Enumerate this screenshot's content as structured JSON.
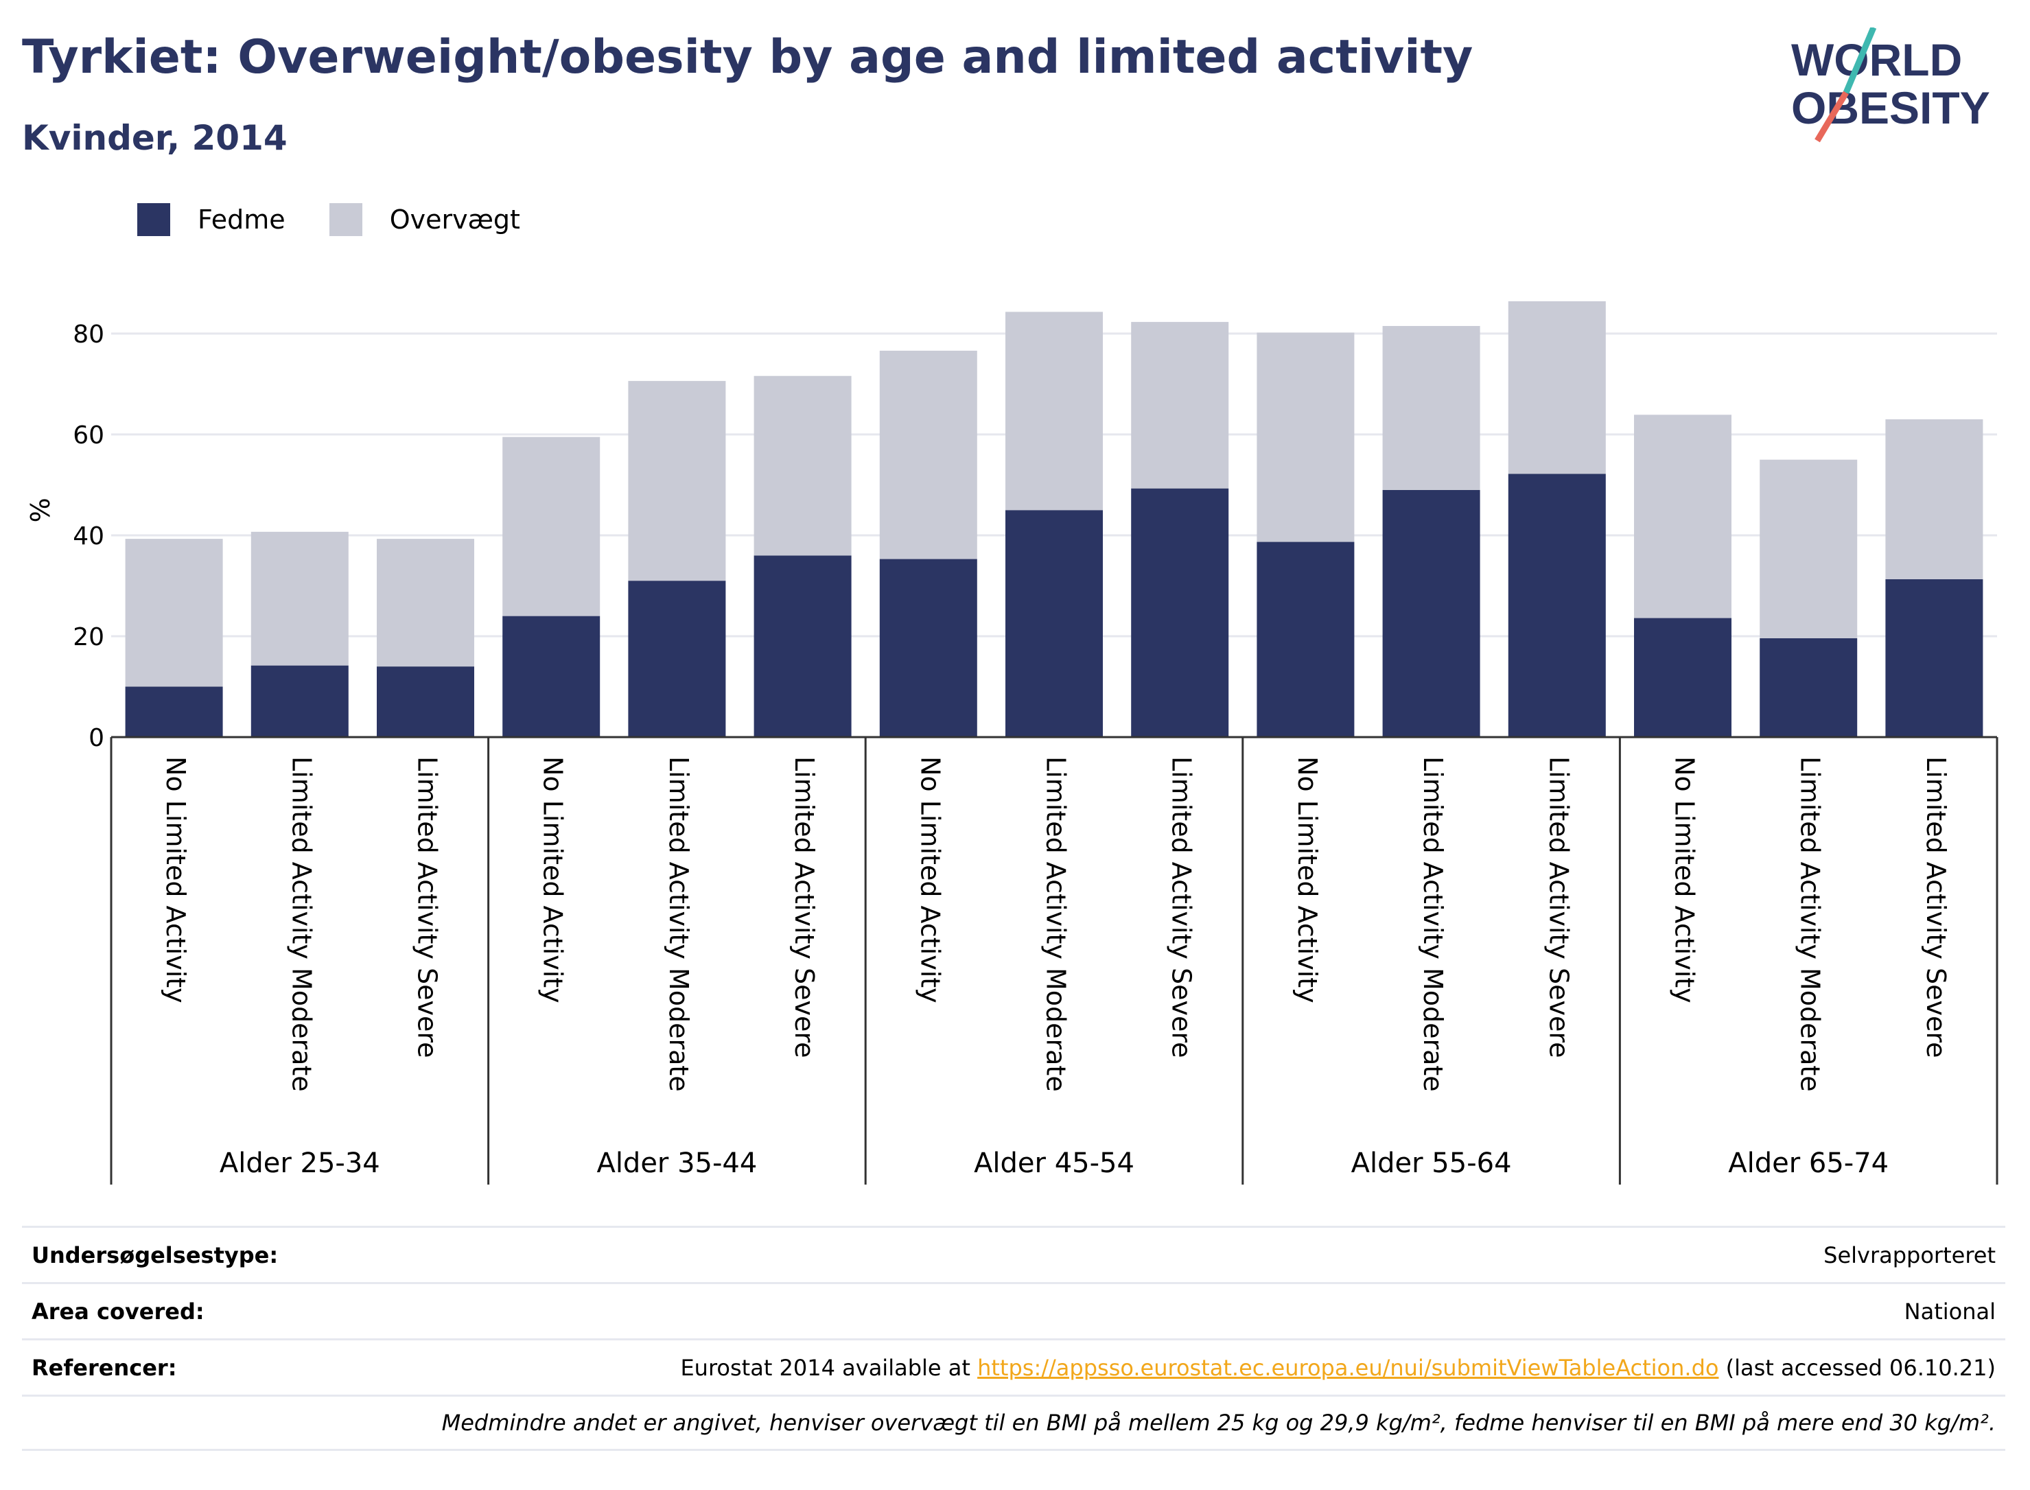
{
  "title": "Tyrkiet: Overweight/obesity by age and limited activity",
  "subtitle": "Kvinder, 2014",
  "logo": {
    "line1": "WORLD",
    "line2": "OBESITY"
  },
  "legend": {
    "fedme": "Fedme",
    "overvaegt": "Overvægt"
  },
  "colors": {
    "fedme": "#2b3563",
    "overvaegt": "#c9cbd6",
    "grid": "#e6e7ee",
    "accent_teal": "#3fb8b0",
    "accent_red": "#e8685a",
    "link": "#f2a71b"
  },
  "chart_data": {
    "type": "bar",
    "stacked": true,
    "ylabel": "%",
    "ylim": [
      0,
      90
    ],
    "yticks": [
      0,
      20,
      40,
      60,
      80
    ],
    "grid": true,
    "legend_position": "top-left",
    "groups": [
      "Alder 25-34",
      "Alder 35-44",
      "Alder 45-54",
      "Alder 55-64",
      "Alder 65-74"
    ],
    "categories": [
      "No Limited Activity",
      "Limited Activity Moderate",
      "Limited Activity Severe"
    ],
    "series": [
      {
        "name": "Fedme",
        "values": [
          [
            10,
            14.2,
            14
          ],
          [
            24,
            31,
            36
          ],
          [
            35.3,
            45,
            49.3
          ],
          [
            38.7,
            49,
            52.2
          ],
          [
            23.6,
            19.6,
            31.3
          ]
        ]
      },
      {
        "name": "Overvægt",
        "values": [
          [
            29.3,
            26.5,
            25.3
          ],
          [
            35.5,
            39.6,
            35.6
          ],
          [
            41.3,
            39.3,
            33
          ],
          [
            41.5,
            32.5,
            34.2
          ],
          [
            40.3,
            35.4,
            31.7
          ]
        ]
      }
    ]
  },
  "info": {
    "survey_label": "Undersøgelsestype:",
    "survey_value": "Selvrapporteret",
    "area_label": "Area covered:",
    "area_value": "National",
    "ref_label": "Referencer:",
    "ref_prefix": "Eurostat 2014 available at",
    "ref_link": "https://appsso.eurostat.ec.europa.eu/nui/submitViewTableAction.do",
    "ref_suffix": "(last accessed 06.10.21)",
    "note": "Medmindre andet er angivet, henviser overvægt til en BMI på mellem 25 kg og 29,9 kg/m², fedme henviser til en BMI på mere end 30 kg/m²."
  }
}
